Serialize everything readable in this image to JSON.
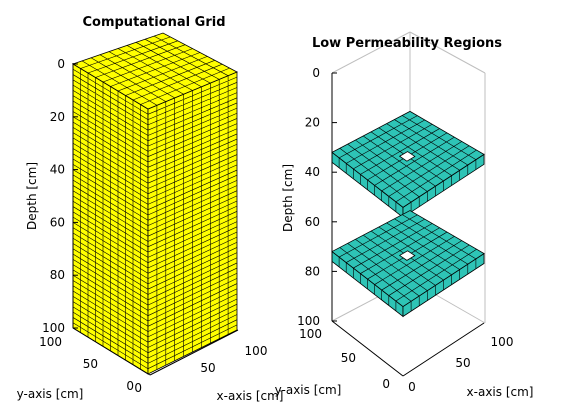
{
  "left_plot": {
    "title": "Computational Grid",
    "z_label": "Depth [cm]",
    "x_label": "x-axis [cm]",
    "y_label": "y-axis [cm]",
    "z_ticks": [
      "0",
      "20",
      "40",
      "60",
      "80",
      "100"
    ],
    "x_ticks": [
      "0",
      "50",
      "100"
    ],
    "y_ticks": [
      "100",
      "50",
      "0"
    ],
    "face_color": "#ffff00",
    "grid": {
      "nx": 10,
      "ny": 10,
      "nz": 50
    }
  },
  "right_plot": {
    "title": "Low Permeability Regions",
    "z_label": "Depth [cm]",
    "x_label": "x-axis [cm]",
    "y_label": "y-axis [cm]",
    "z_ticks": [
      "0",
      "20",
      "40",
      "60",
      "80",
      "100"
    ],
    "x_ticks": [
      "0",
      "50",
      "100"
    ],
    "y_ticks": [
      "100",
      "50",
      "0"
    ],
    "face_color": "#2ec4b6",
    "layers": [
      {
        "depth_top": 32,
        "depth_bottom": 36,
        "hole": "center"
      },
      {
        "depth_top": 72,
        "depth_bottom": 76,
        "hole": "center"
      }
    ]
  },
  "colors": {
    "grid_line": "#000000",
    "box_line": "#bfbfbf",
    "axis": "#000000"
  }
}
